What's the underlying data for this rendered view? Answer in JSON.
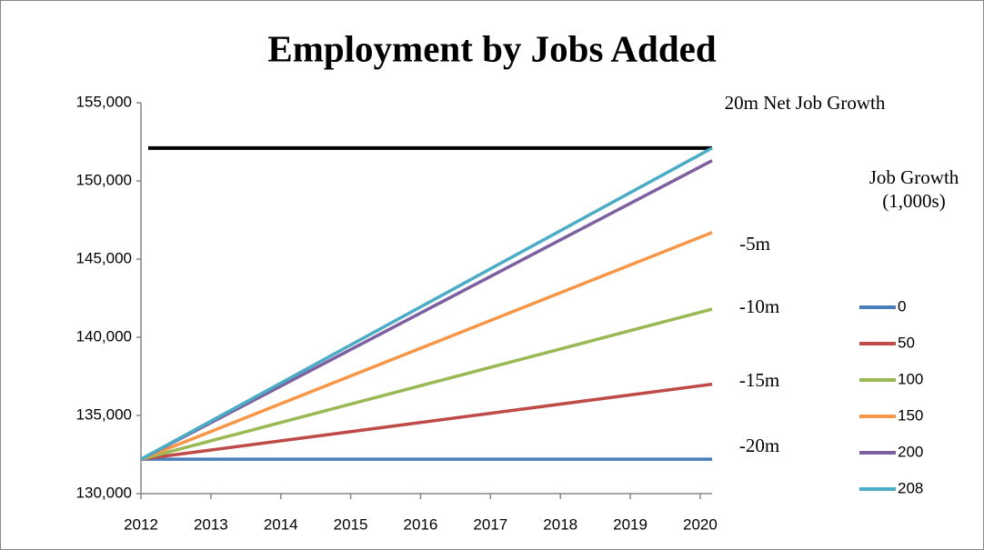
{
  "chart_data": {
    "type": "line",
    "title": "Employment by Jobs Added",
    "x": [
      2012,
      2020.17
    ],
    "xlim": [
      2012,
      2020.17
    ],
    "xticks": [
      2012,
      2013,
      2014,
      2015,
      2016,
      2017,
      2018,
      2019,
      2020
    ],
    "ylim": [
      130000,
      155000
    ],
    "yticks": [
      {
        "value": 130000,
        "label": "130,000"
      },
      {
        "value": 135000,
        "label": "135,000"
      },
      {
        "value": 140000,
        "label": "140,000"
      },
      {
        "value": 145000,
        "label": "145,000"
      },
      {
        "value": 150000,
        "label": "150,000"
      },
      {
        "value": 155000,
        "label": "155,000"
      }
    ],
    "grid": false,
    "legend_title": "Job Growth (1,000s)",
    "legend": "right",
    "series": [
      {
        "name": "0",
        "color": "#4a7ebb",
        "values": [
          132200,
          132200
        ]
      },
      {
        "name": "50",
        "color": "#be4b48",
        "values": [
          132200,
          137000
        ]
      },
      {
        "name": "100",
        "color": "#98b954",
        "values": [
          132200,
          141800
        ]
      },
      {
        "name": "150",
        "color": "#f79646",
        "values": [
          132200,
          146700
        ]
      },
      {
        "name": "200",
        "color": "#7d60a0",
        "values": [
          132200,
          151300
        ]
      },
      {
        "name": "208",
        "color": "#4bacc6",
        "values": [
          132200,
          152100
        ]
      }
    ],
    "reference_line": {
      "value": 152100,
      "color": "#000000"
    },
    "annotations": [
      "20m Net Job Growth",
      "-5m",
      "-10m",
      "-15m",
      "-20m"
    ]
  }
}
